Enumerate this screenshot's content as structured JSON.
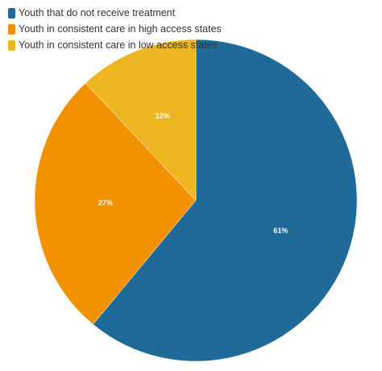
{
  "chart_data": {
    "type": "pie",
    "title": "",
    "legend_position": "top-left",
    "start_angle_deg": 0,
    "direction": "clockwise",
    "series": [
      {
        "values": [
          61,
          27,
          12
        ],
        "slices": [
          {
            "label": "Youth that do not receive treatment",
            "value": 61,
            "value_label": "61%",
            "color": "#1f6a98"
          },
          {
            "label": "Youth in consistent care in high access states",
            "value": 27,
            "value_label": "27%",
            "color": "#f39200"
          },
          {
            "label": "Youth in consistent care in low access states",
            "value": 12,
            "value_label": "12%",
            "color": "#efb623"
          }
        ]
      }
    ]
  }
}
